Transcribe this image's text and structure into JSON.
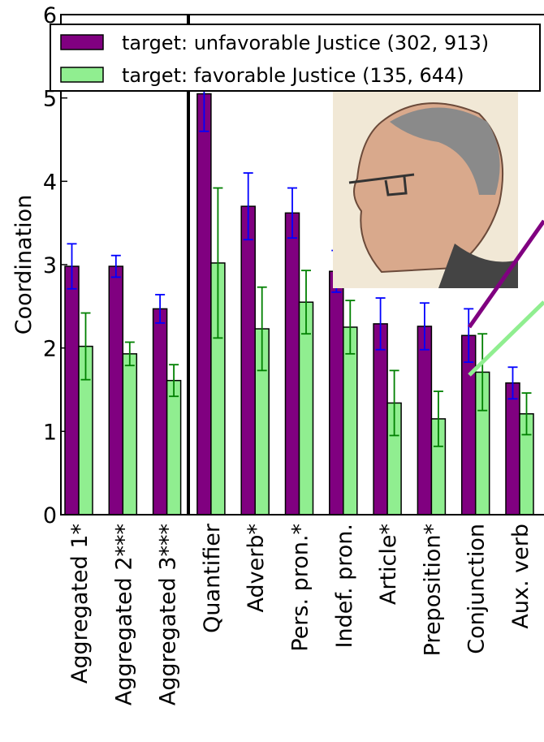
{
  "chart_data": {
    "type": "bar",
    "y_label": "Coordination",
    "categories": [
      "Aggregated 1*",
      "Aggregated 2***",
      "Aggregated 3***",
      "Quantifier",
      "Adverb*",
      "Pers. pron.*",
      "Indef. pron.",
      "Article*",
      "Preposition*",
      "Conjunction",
      "Aux. verb"
    ],
    "series": [
      {
        "name": "target: unfavorable Justice (302, 913)",
        "color": "#800080",
        "error_color": "#0000ff",
        "values": [
          2.98,
          2.98,
          2.47,
          5.05,
          3.7,
          3.62,
          2.92,
          2.29,
          2.26,
          2.15,
          1.58
        ],
        "errors": [
          0.27,
          0.13,
          0.17,
          0.45,
          0.4,
          0.3,
          0.25,
          0.31,
          0.28,
          0.32,
          0.19
        ]
      },
      {
        "name": "target: favorable Justice (135, 644)",
        "color": "#90ee90",
        "error_color": "#008000",
        "values": [
          2.02,
          1.93,
          1.61,
          3.02,
          2.23,
          2.55,
          2.25,
          1.34,
          1.15,
          1.71,
          1.21
        ],
        "errors": [
          0.4,
          0.14,
          0.19,
          0.9,
          0.5,
          0.38,
          0.32,
          0.39,
          0.33,
          0.46,
          0.25
        ]
      }
    ],
    "ylim": [
      0,
      6
    ],
    "yticks": [
      0,
      1,
      2,
      3,
      4,
      5,
      6
    ]
  }
}
